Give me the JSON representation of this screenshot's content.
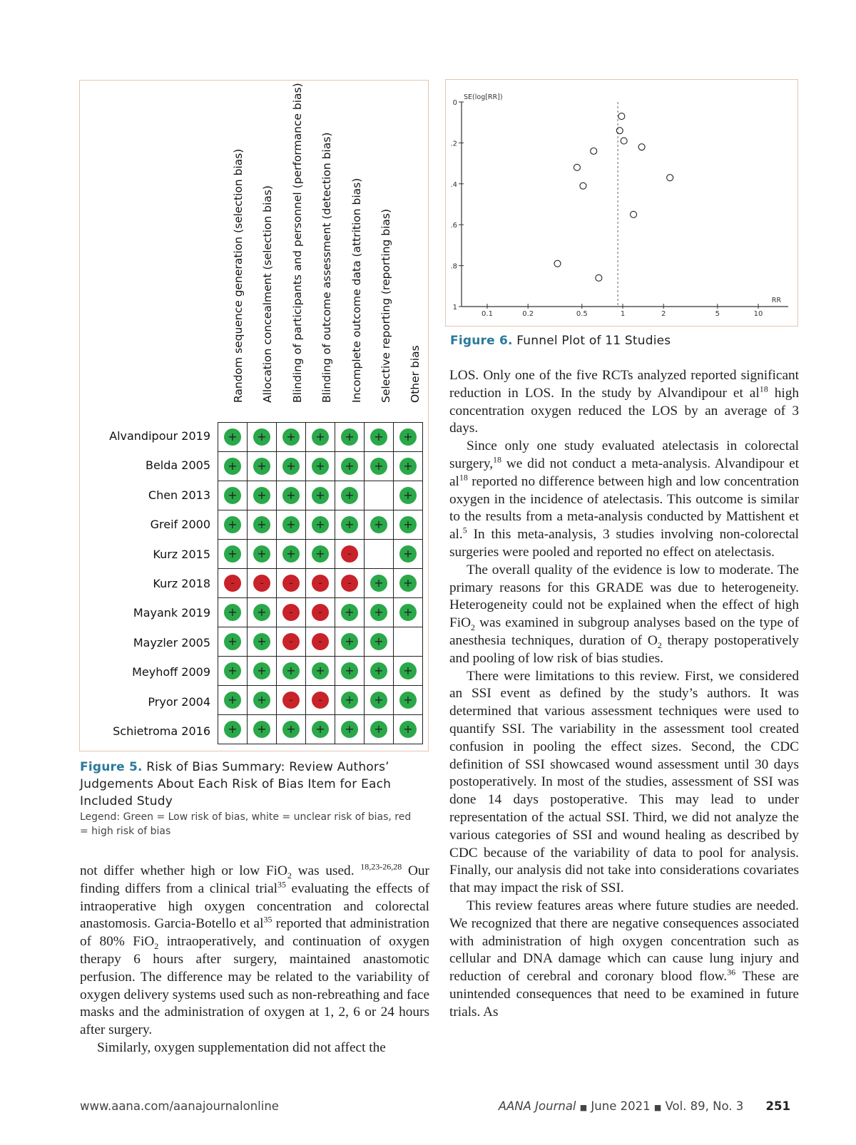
{
  "figure5": {
    "columns": [
      "Random sequence generation (selection bias)",
      "Allocation concealment (selection bias)",
      "Blinding of participants and personnel (performance bias)",
      "Blinding of outcome assessment (detection bias)",
      "Incomplete outcome data (attrition bias)",
      "Selective reporting (reporting bias)",
      "Other bias"
    ],
    "studies": [
      {
        "name": "Alvandipour 2019",
        "judgements": [
          "+",
          "+",
          "+",
          "+",
          "+",
          "+",
          "+"
        ]
      },
      {
        "name": "Belda 2005",
        "judgements": [
          "+",
          "+",
          "+",
          "+",
          "+",
          "+",
          "+"
        ]
      },
      {
        "name": "Chen 2013",
        "judgements": [
          "+",
          "+",
          "+",
          "+",
          "+",
          "",
          "+"
        ]
      },
      {
        "name": "Greif 2000",
        "judgements": [
          "+",
          "+",
          "+",
          "+",
          "+",
          "+",
          "+"
        ]
      },
      {
        "name": "Kurz 2015",
        "judgements": [
          "+",
          "+",
          "+",
          "+",
          "-",
          "",
          "+"
        ]
      },
      {
        "name": "Kurz 2018",
        "judgements": [
          "-",
          "-",
          "-",
          "-",
          "-",
          "+",
          "+"
        ]
      },
      {
        "name": "Mayank 2019",
        "judgements": [
          "+",
          "+",
          "-",
          "-",
          "+",
          "+",
          "+"
        ]
      },
      {
        "name": "Mayzler 2005",
        "judgements": [
          "+",
          "+",
          "-",
          "-",
          "+",
          "+",
          ""
        ]
      },
      {
        "name": "Meyhoff 2009",
        "judgements": [
          "+",
          "+",
          "+",
          "+",
          "+",
          "+",
          "+"
        ]
      },
      {
        "name": "Pryor 2004",
        "judgements": [
          "+",
          "+",
          "-",
          "-",
          "+",
          "+",
          "+"
        ]
      },
      {
        "name": "Schietroma 2016",
        "judgements": [
          "+",
          "+",
          "+",
          "+",
          "+",
          "+",
          "+"
        ]
      }
    ],
    "colors": {
      "low": "#2aa84a",
      "high": "#c8232a",
      "unclear": "#ffffff"
    },
    "caption_label": "Figure 5.",
    "caption_text": "Risk of Bias Summary: Review Authors’ Judgements About Each Risk of Bias Item for Each Included Study",
    "legend": "Legend: Green = Low risk of bias, white = unclear risk of bias, red = high risk of bias"
  },
  "chart_data": {
    "type": "scatter",
    "title": "",
    "xlabel": "RR",
    "ylabel": "SE(log[RR])",
    "x_scale": "log",
    "xlim": [
      0.1,
      10
    ],
    "ylim": [
      0,
      1
    ],
    "y_reversed": true,
    "x_ticks": [
      "0.1",
      "0.2",
      "0.5",
      "1",
      "2",
      "5",
      "10"
    ],
    "y_ticks": [
      "0",
      ".2",
      ".4",
      ".6",
      ".8",
      "1"
    ],
    "reference_line_x": 0.92,
    "points": [
      {
        "x": 0.98,
        "y": 0.07
      },
      {
        "x": 0.95,
        "y": 0.14
      },
      {
        "x": 1.02,
        "y": 0.19
      },
      {
        "x": 1.38,
        "y": 0.22
      },
      {
        "x": 0.61,
        "y": 0.24
      },
      {
        "x": 0.46,
        "y": 0.32
      },
      {
        "x": 0.51,
        "y": 0.41
      },
      {
        "x": 2.23,
        "y": 0.37
      },
      {
        "x": 1.2,
        "y": 0.55
      },
      {
        "x": 0.33,
        "y": 0.79
      },
      {
        "x": 0.665,
        "y": 0.86
      }
    ],
    "grid": false
  },
  "figure6": {
    "caption_label": "Figure 6.",
    "caption_text": "Funnel Plot of 11 Studies"
  },
  "left_text": [
    {
      "indent": false,
      "segs": [
        [
          "not differ whether high or low FiO",
          ""
        ],
        [
          "2",
          "sub"
        ],
        [
          " was used. ",
          ""
        ],
        [
          "18,23-26,28",
          "sup"
        ],
        [
          " Our finding differs from a clinical trial",
          ""
        ],
        [
          "35",
          "sup"
        ],
        [
          " evaluating the effects of intraoperative high oxygen concentration and colorectal anastomosis. Garcia-Botello et al",
          ""
        ],
        [
          "35",
          "sup"
        ],
        [
          " reported that administration of 80% FiO",
          ""
        ],
        [
          "2",
          "sub"
        ],
        [
          " intraoperatively, and continuation of oxygen therapy 6 hours after surgery, maintained anastomotic perfusion. The difference may be related to the variability of oxygen delivery systems used such as non-rebreathing and face masks and the administration of oxygen at 1, 2, 6 or 24 hours after surgery.",
          ""
        ]
      ]
    },
    {
      "indent": true,
      "segs": [
        [
          "Similarly, oxygen supplementation did not affect the",
          ""
        ]
      ]
    }
  ],
  "right_text": [
    {
      "indent": false,
      "segs": [
        [
          "LOS. Only one of the five RCTs analyzed reported significant reduction in LOS. In the study by Alvandipour et al",
          ""
        ],
        [
          "18",
          "sup"
        ],
        [
          " high concentration oxygen reduced the LOS by an average of 3 days.",
          ""
        ]
      ]
    },
    {
      "indent": true,
      "segs": [
        [
          "Since only one study evaluated atelectasis in colorectal surgery,",
          ""
        ],
        [
          "18",
          "sup"
        ],
        [
          " we did not conduct a meta-analysis. Alvandipour et al",
          ""
        ],
        [
          "18",
          "sup"
        ],
        [
          " reported no difference between high and low concentration oxygen in the incidence of atelectasis. This outcome is similar to the results from a meta-analysis conducted by Mattishent et al.",
          ""
        ],
        [
          "5",
          "sup"
        ],
        [
          " In this meta-analysis, 3 studies involving non-colorectal surgeries were pooled and reported no effect on atelectasis.",
          ""
        ]
      ]
    },
    {
      "indent": true,
      "segs": [
        [
          "The overall quality of the evidence is low to moderate. The primary reasons for this GRADE was due to heterogeneity. Heterogeneity could not be explained when the effect of high FiO",
          ""
        ],
        [
          "2",
          "sub"
        ],
        [
          " was examined in subgroup analyses based on the type of anesthesia techniques, duration of O",
          ""
        ],
        [
          "2",
          "sub"
        ],
        [
          " therapy postoperatively and pooling of low risk of bias studies.",
          ""
        ]
      ]
    },
    {
      "indent": true,
      "segs": [
        [
          "There were limitations to this review. First, we considered an SSI event as defined by the study’s authors. It was determined that various assessment techniques were used to quantify SSI. The variability in the assessment tool created confusion in pooling the effect sizes. Second, the CDC definition of SSI showcased wound assessment until 30 days postoperatively. In most of the studies, assessment of SSI was done 14 days postoperative. This may lead to under representation of the actual SSI. Third, we did not analyze the various categories of SSI and wound healing as described by CDC because of the variability of data to pool for analysis. Finally, our analysis did not take into considerations covariates that may impact the risk of SSI.",
          ""
        ]
      ]
    },
    {
      "indent": true,
      "segs": [
        [
          "This review features areas where future studies are needed. We recognized that there are negative consequences associated with administration of high oxygen concentration such as cellular and DNA damage which can cause lung injury and reduction of cerebral and coronary blood flow.",
          ""
        ],
        [
          "36",
          "sup"
        ],
        [
          " These are unintended consequences that need to be examined in future trials. As",
          ""
        ]
      ]
    }
  ],
  "footer": {
    "url": "www.aana.com/aanajournalonline",
    "journal": "AANA Journal",
    "sep": "■",
    "date": "June 2021",
    "volume": "Vol. 89, No. 3",
    "page": "251"
  }
}
